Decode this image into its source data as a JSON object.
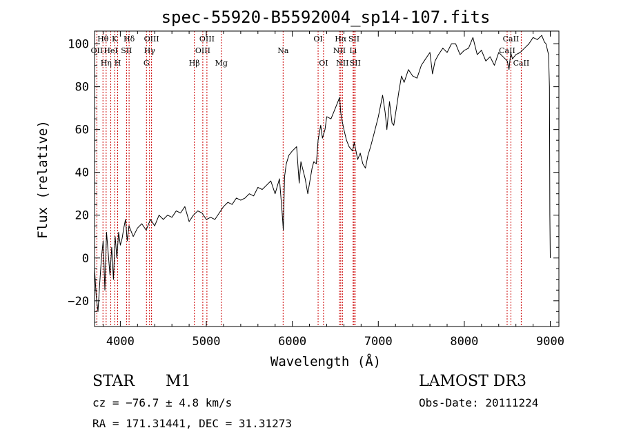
{
  "chart_data": {
    "type": "line",
    "title": "spec-55920-B5592004_sp14-107.fits",
    "xlabel": "Wavelength (Å)",
    "ylabel": "Flux (relative)",
    "xlim": [
      3700,
      9100
    ],
    "ylim": [
      -32,
      106
    ],
    "xticks": [
      4000,
      5000,
      6000,
      7000,
      8000,
      9000
    ],
    "yticks": [
      -20,
      0,
      20,
      40,
      60,
      80,
      100
    ],
    "grid": false,
    "line_color": "#000000",
    "marker_color": "#cc0000",
    "series": [
      {
        "name": "spectrum",
        "x": [
          3700,
          3720,
          3740,
          3760,
          3780,
          3800,
          3820,
          3840,
          3860,
          3880,
          3900,
          3920,
          3940,
          3960,
          3980,
          4000,
          4020,
          4040,
          4060,
          4080,
          4100,
          4150,
          4200,
          4250,
          4300,
          4350,
          4400,
          4450,
          4500,
          4550,
          4600,
          4650,
          4700,
          4750,
          4800,
          4850,
          4900,
          4950,
          5000,
          5050,
          5100,
          5150,
          5200,
          5250,
          5300,
          5350,
          5400,
          5450,
          5500,
          5550,
          5600,
          5650,
          5700,
          5750,
          5800,
          5850,
          5880,
          5895,
          5910,
          5930,
          5960,
          6000,
          6050,
          6080,
          6100,
          6150,
          6180,
          6200,
          6230,
          6250,
          6280,
          6300,
          6330,
          6350,
          6380,
          6400,
          6450,
          6500,
          6520,
          6550,
          6563,
          6580,
          6600,
          6630,
          6660,
          6700,
          6720,
          6740,
          6760,
          6790,
          6820,
          6850,
          6880,
          6910,
          6950,
          7000,
          7050,
          7080,
          7100,
          7130,
          7160,
          7180,
          7210,
          7240,
          7270,
          7300,
          7350,
          7400,
          7450,
          7500,
          7550,
          7600,
          7630,
          7660,
          7700,
          7750,
          7800,
          7850,
          7900,
          7950,
          8000,
          8050,
          8100,
          8150,
          8200,
          8250,
          8300,
          8350,
          8400,
          8450,
          8500,
          8520,
          8540,
          8560,
          8600,
          8650,
          8700,
          8750,
          8800,
          8850,
          8900,
          8930,
          8950,
          8980,
          8990,
          8995,
          9000
        ],
        "values": [
          -5,
          -18,
          -25,
          -12,
          0,
          8,
          -15,
          12,
          2,
          -8,
          5,
          -10,
          10,
          0,
          12,
          6,
          9,
          14,
          18,
          8,
          15,
          10,
          14,
          16,
          13,
          18,
          15,
          20,
          18,
          20,
          19,
          22,
          21,
          24,
          17,
          20,
          22,
          21,
          18,
          19,
          18,
          21,
          24,
          26,
          25,
          28,
          27,
          28,
          30,
          29,
          33,
          32,
          34,
          36,
          30,
          37,
          22,
          13,
          38,
          44,
          48,
          50,
          52,
          35,
          45,
          37,
          30,
          35,
          42,
          45,
          44,
          55,
          62,
          56,
          60,
          66,
          65,
          70,
          72,
          75,
          68,
          64,
          60,
          55,
          52,
          50,
          54,
          50,
          46,
          49,
          44,
          42,
          48,
          52,
          58,
          66,
          76,
          68,
          60,
          73,
          63,
          62,
          70,
          78,
          85,
          82,
          88,
          85,
          84,
          90,
          93,
          96,
          86,
          92,
          95,
          98,
          96,
          100,
          100,
          95,
          97,
          98,
          103,
          95,
          97,
          92,
          94,
          90,
          96,
          94,
          92,
          88,
          96,
          93,
          95,
          96,
          98,
          100,
          103,
          102,
          104,
          101,
          100,
          95,
          80,
          20,
          0
        ]
      }
    ],
    "line_markers": [
      {
        "wl": 3727,
        "row": 1,
        "label": "OII"
      },
      {
        "wl": 3798,
        "row": 0,
        "label": "Hθ"
      },
      {
        "wl": 3835,
        "row": 2,
        "label": "Hη"
      },
      {
        "wl": 3889,
        "row": 1,
        "label": "HeI"
      },
      {
        "wl": 3934,
        "row": 0,
        "label": "K"
      },
      {
        "wl": 3969,
        "row": 2,
        "label": "H"
      },
      {
        "wl": 4072,
        "row": 1,
        "label": "SII"
      },
      {
        "wl": 4102,
        "row": 0,
        "label": "Hδ"
      },
      {
        "wl": 4304,
        "row": 2,
        "label": "G"
      },
      {
        "wl": 4340,
        "row": 1,
        "label": "Hγ"
      },
      {
        "wl": 4363,
        "row": 0,
        "label": "OIII"
      },
      {
        "wl": 4861,
        "row": 2,
        "label": "Hβ"
      },
      {
        "wl": 4959,
        "row": 1,
        "label": "OIII"
      },
      {
        "wl": 5007,
        "row": 0,
        "label": "OIII"
      },
      {
        "wl": 5175,
        "row": 2,
        "label": "Mg"
      },
      {
        "wl": 5893,
        "row": 1,
        "label": "Na"
      },
      {
        "wl": 6300,
        "row": 0,
        "label": "OI"
      },
      {
        "wl": 6363,
        "row": 2,
        "label": "OI"
      },
      {
        "wl": 6548,
        "row": 1,
        "label": "NII"
      },
      {
        "wl": 6563,
        "row": 0,
        "label": "Hα"
      },
      {
        "wl": 6583,
        "row": 2,
        "label": "NII"
      },
      {
        "wl": 6707,
        "row": 1,
        "label": "Li"
      },
      {
        "wl": 6717,
        "row": 0,
        "label": "SII"
      },
      {
        "wl": 6731,
        "row": 2,
        "label": "SII"
      },
      {
        "wl": 8498,
        "row": 1,
        "label": "CaII"
      },
      {
        "wl": 8542,
        "row": 0,
        "label": "CaII"
      },
      {
        "wl": 8662,
        "row": 2,
        "label": "CaII"
      }
    ]
  },
  "info": {
    "object_class": "STAR",
    "subclass": "M1",
    "survey": "LAMOST DR3",
    "redshift_line": "cz = −76.7 ± 4.8 km/s",
    "obs_date": "Obs-Date: 20111224",
    "coords": "RA = 171.31441, DEC =  31.31273"
  }
}
